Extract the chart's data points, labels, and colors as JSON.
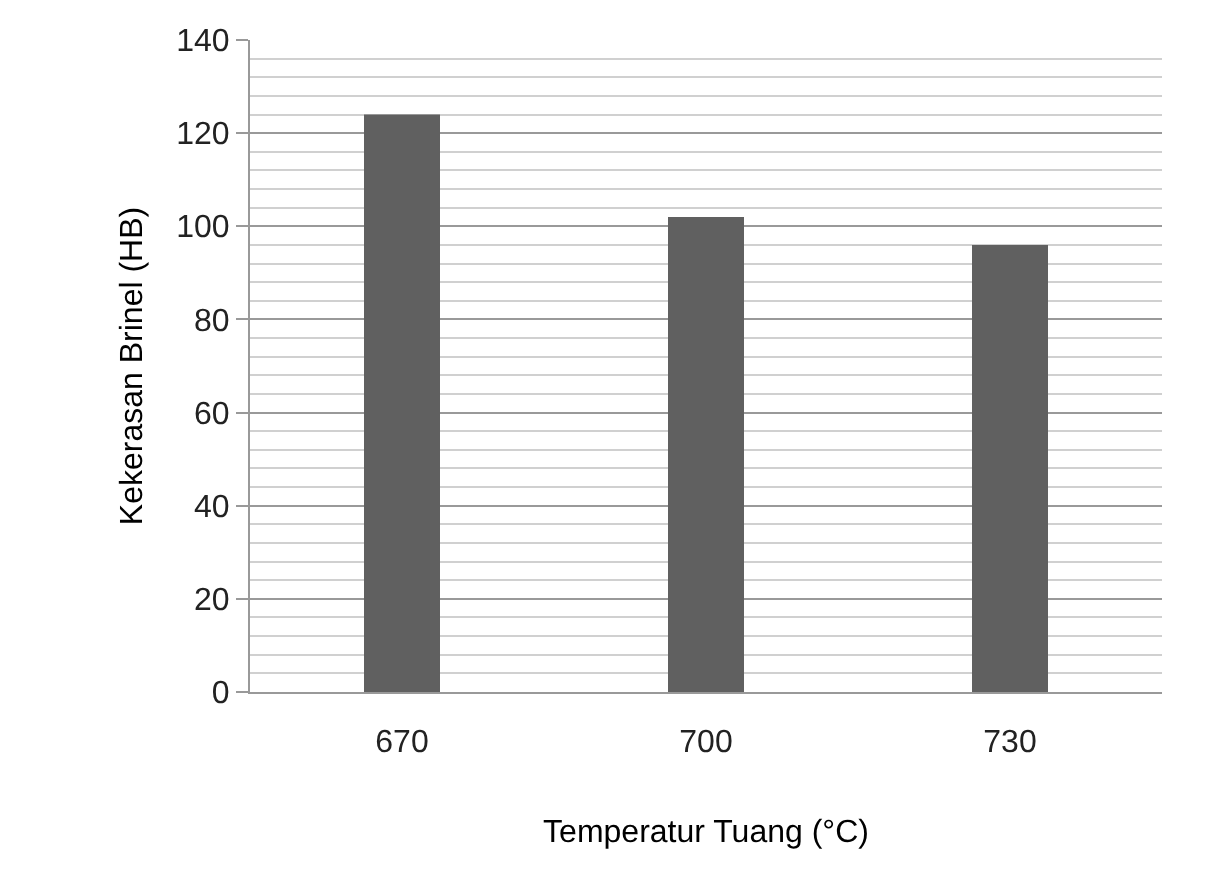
{
  "chart_data": {
    "type": "bar",
    "xlabel": "Temperatur Tuang (°C)",
    "ylabel": "Kekerasan Brinel (HB)",
    "categories": [
      "670",
      "700",
      "730"
    ],
    "series": [
      {
        "color": "#606060",
        "values": [
          124,
          102,
          96
        ]
      }
    ],
    "ylim": [
      0,
      140
    ],
    "yticks": [
      0,
      20,
      40,
      60,
      80,
      100,
      120,
      140
    ],
    "grid": "y",
    "legend": false
  }
}
